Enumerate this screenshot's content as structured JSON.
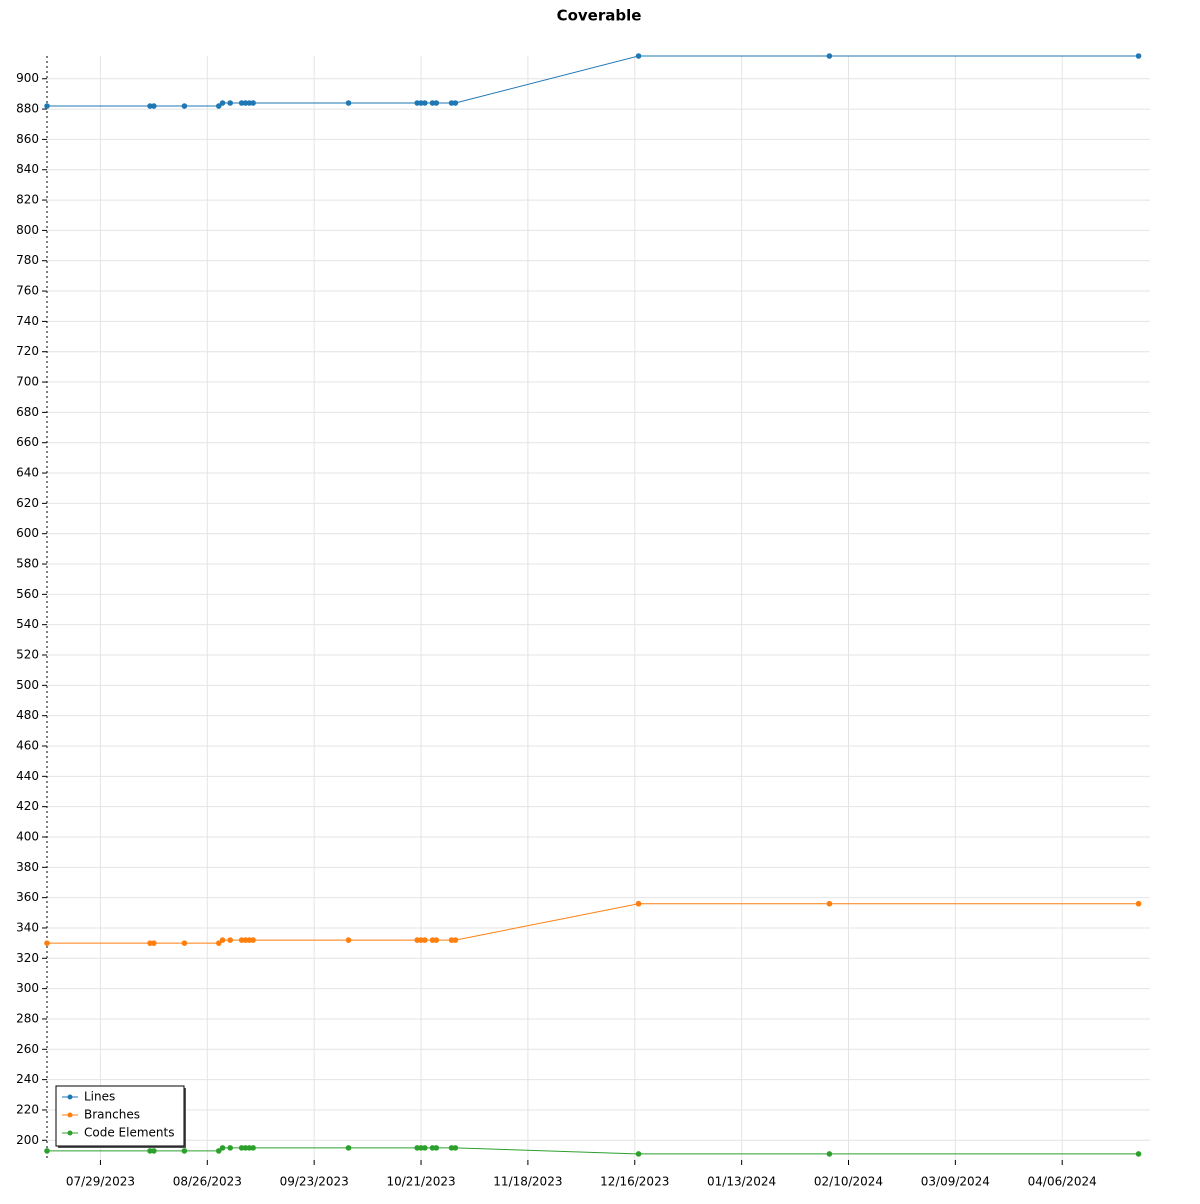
{
  "chart_data": {
    "type": "line",
    "title": "Coverable",
    "x": [
      "07/15/2023",
      "08/11/2023",
      "08/12/2023",
      "08/20/2023",
      "08/29/2023",
      "08/30/2023",
      "09/01/2023",
      "09/04/2023",
      "09/05/2023",
      "09/06/2023",
      "09/07/2023",
      "10/02/2023",
      "10/20/2023",
      "10/21/2023",
      "10/22/2023",
      "10/24/2023",
      "10/25/2023",
      "10/29/2023",
      "10/30/2023",
      "12/17/2023",
      "02/05/2024",
      "04/26/2024"
    ],
    "series": [
      {
        "name": "Lines",
        "color": "#1f77b4",
        "values": [
          882,
          882,
          882,
          882,
          882,
          884,
          884,
          884,
          884,
          884,
          884,
          884,
          884,
          884,
          884,
          884,
          884,
          884,
          884,
          915,
          915,
          915
        ]
      },
      {
        "name": "Branches",
        "color": "#ff7f0e",
        "values": [
          330,
          330,
          330,
          330,
          330,
          332,
          332,
          332,
          332,
          332,
          332,
          332,
          332,
          332,
          332,
          332,
          332,
          332,
          332,
          356,
          356,
          356
        ]
      },
      {
        "name": "Code Elements",
        "color": "#2ca02c",
        "values": [
          193,
          193,
          193,
          193,
          193,
          195,
          195,
          195,
          195,
          195,
          195,
          195,
          195,
          195,
          195,
          195,
          195,
          195,
          195,
          191,
          191,
          191
        ]
      }
    ],
    "xlim": [
      "07/15/2023",
      "04/29/2024"
    ],
    "xticks": [
      "07/29/2023",
      "08/26/2023",
      "09/23/2023",
      "10/21/2023",
      "11/18/2023",
      "12/16/2023",
      "01/13/2024",
      "02/10/2024",
      "03/09/2024",
      "04/06/2024"
    ],
    "ylim": [
      187,
      915
    ],
    "yticks": [
      200,
      220,
      240,
      260,
      280,
      300,
      320,
      340,
      360,
      380,
      400,
      420,
      440,
      460,
      480,
      500,
      520,
      540,
      560,
      580,
      600,
      620,
      640,
      660,
      680,
      700,
      720,
      740,
      760,
      780,
      800,
      820,
      840,
      860,
      880,
      900
    ],
    "grid": true,
    "legend": "lower left"
  }
}
